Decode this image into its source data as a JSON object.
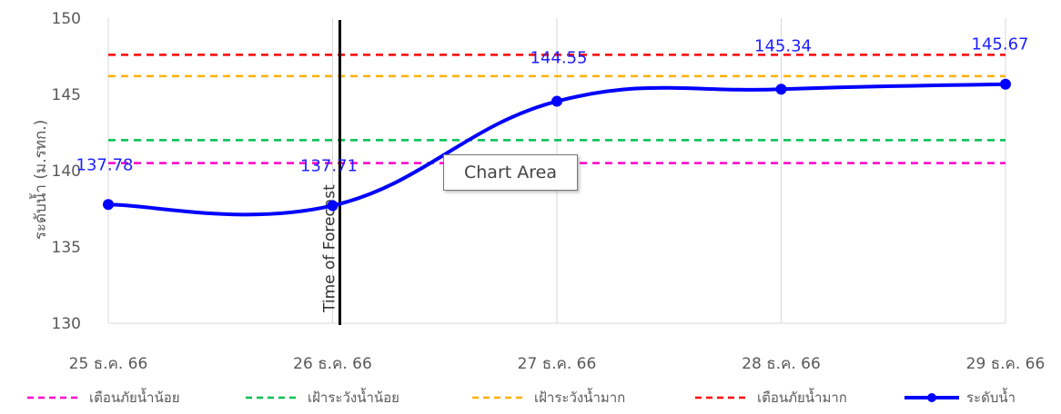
{
  "chart_data": {
    "type": "line",
    "title": "",
    "xlabel": "",
    "ylabel": "ระดับน้ำ (ม.รทก.)",
    "categories": [
      "25 ธ.ค. 66",
      "26 ธ.ค. 66",
      "27 ธ.ค. 66",
      "28 ธ.ค. 66",
      "29 ธ.ค. 66"
    ],
    "ylim": [
      130,
      150
    ],
    "yticks": [
      130,
      135,
      140,
      145,
      150
    ],
    "grid": "vertical",
    "legend_position": "bottom",
    "series": [
      {
        "name": "ระดับน้ำ",
        "values": [
          137.78,
          137.71,
          144.55,
          145.34,
          145.67
        ],
        "color": "#0000ff",
        "style": "solid-markers"
      }
    ],
    "threshold_lines": [
      {
        "name": "เตือนภัยน้ำน้อย",
        "value": 140.5,
        "color": "#ff00cc"
      },
      {
        "name": "เฝ้าระวังน้ำน้อย",
        "value": 142.0,
        "color": "#00c050"
      },
      {
        "name": "เฝ้าระวังน้ำมาก",
        "value": 146.2,
        "color": "#ffb000"
      },
      {
        "name": "เตือนภัยน้ำมาก",
        "value": 147.6,
        "color": "#ff0000"
      }
    ],
    "annotations": {
      "forecast_line_label": "Time of Forecast",
      "forecast_index": 1,
      "data_labels": [
        "137.78",
        "137.71",
        "144.55",
        "145.34",
        "145.67"
      ]
    }
  },
  "tooltip": {
    "text": "Chart Area"
  }
}
